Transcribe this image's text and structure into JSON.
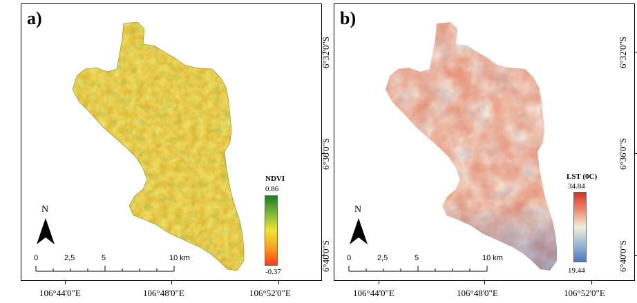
{
  "panels": [
    {
      "id": "a",
      "label": "a)",
      "legend": {
        "title": "NDVI",
        "max": "0.86",
        "min": "-0.37",
        "colors": [
          "#1f7a1f",
          "#7cb83a",
          "#f0e432",
          "#f6a020",
          "#ff3a1a"
        ]
      }
    },
    {
      "id": "b",
      "label": "b)",
      "legend": {
        "title": "LST (0C)",
        "max": "34.84",
        "min": "19.44",
        "colors": [
          "#d73027",
          "#f08a6a",
          "#f2efd8",
          "#9cb8d6",
          "#4a78bc"
        ]
      }
    }
  ],
  "north_label": "N",
  "scale_bar": {
    "labels": [
      "0",
      "2,5",
      "5",
      "10 km"
    ]
  },
  "x_axis_labels": [
    "106°44'0\"E",
    "106°48'0\"E",
    "106°52'0\"E"
  ],
  "y_axis_labels": [
    "6°32'0\"S",
    "6°36'0\"S",
    "6°40'0\"S"
  ],
  "colors": {
    "frame": "#000000",
    "background": "#ffffff"
  }
}
